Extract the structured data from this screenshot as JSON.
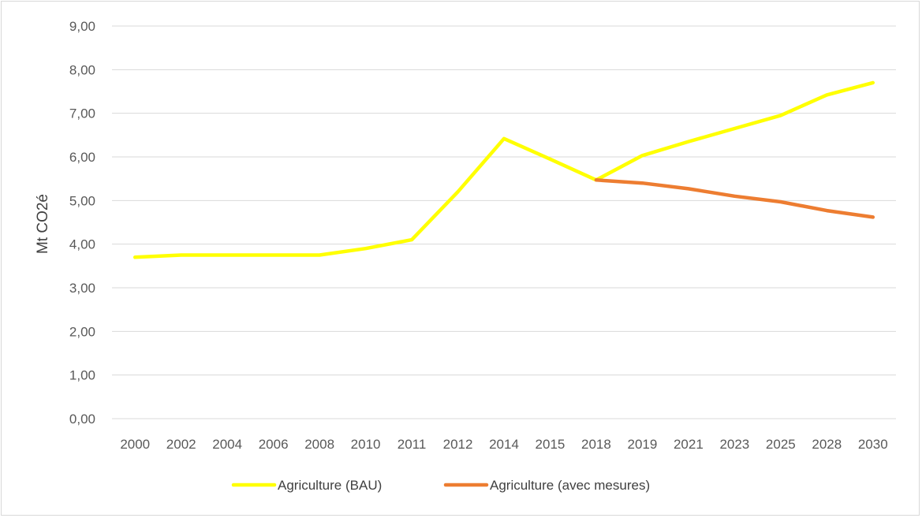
{
  "chart_data": {
    "type": "line",
    "ylabel": "Mt CO2é",
    "ylim": [
      0,
      9
    ],
    "yticks": [
      "0,00",
      "1,00",
      "2,00",
      "3,00",
      "4,00",
      "5,00",
      "6,00",
      "7,00",
      "8,00",
      "9,00"
    ],
    "categories": [
      "2000",
      "2002",
      "2004",
      "2006",
      "2008",
      "2010",
      "2011",
      "2012",
      "2014",
      "2015",
      "2018",
      "2019",
      "2021",
      "2023",
      "2025",
      "2028",
      "2030"
    ],
    "grid": true,
    "legend_position": "bottom",
    "series": [
      {
        "name": "Agriculture (BAU)",
        "color": "#FFFF00",
        "values": [
          3.7,
          3.75,
          3.75,
          3.75,
          3.75,
          3.9,
          4.1,
          5.2,
          6.42,
          5.95,
          5.47,
          6.03,
          6.35,
          6.65,
          6.95,
          7.42,
          7.7
        ]
      },
      {
        "name": "Agriculture (avec mesures)",
        "color": "#ED7D31",
        "values": [
          null,
          null,
          null,
          null,
          null,
          null,
          null,
          null,
          null,
          null,
          5.47,
          5.4,
          5.27,
          5.1,
          4.97,
          4.77,
          4.62
        ]
      }
    ]
  }
}
